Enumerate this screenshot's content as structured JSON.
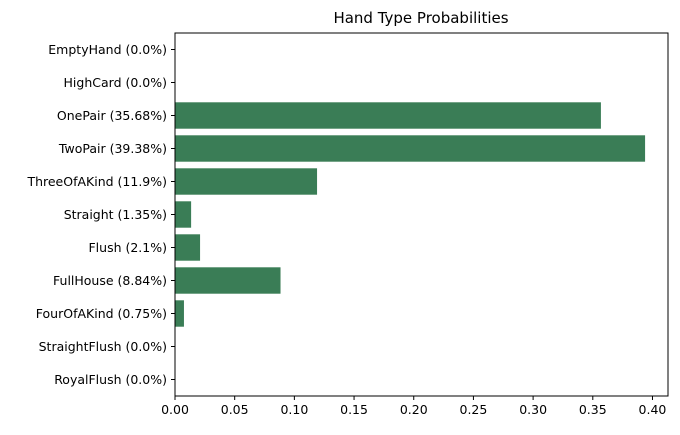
{
  "chart_data": {
    "type": "bar",
    "orientation": "horizontal",
    "title": "Hand Type Probabilities",
    "xlabel": "",
    "ylabel": "",
    "categories": [
      "EmptyHand (0.0%)",
      "HighCard (0.0%)",
      "OnePair (35.68%)",
      "TwoPair (39.38%)",
      "ThreeOfAKind (11.9%)",
      "Straight (1.35%)",
      "Flush (2.1%)",
      "FullHouse (8.84%)",
      "FourOfAKind (0.75%)",
      "StraightFlush (0.0%)",
      "RoyalFlush (0.0%)"
    ],
    "values": [
      0.0,
      0.0,
      0.3568,
      0.3938,
      0.119,
      0.0135,
      0.021,
      0.0884,
      0.0075,
      0.0,
      0.0
    ],
    "xlim": [
      0,
      0.413
    ],
    "xticks": [
      "0.00",
      "0.05",
      "0.10",
      "0.15",
      "0.20",
      "0.25",
      "0.30",
      "0.35",
      "0.40"
    ],
    "bar_color": "#3a7d56",
    "grid": false,
    "legend": "none"
  }
}
